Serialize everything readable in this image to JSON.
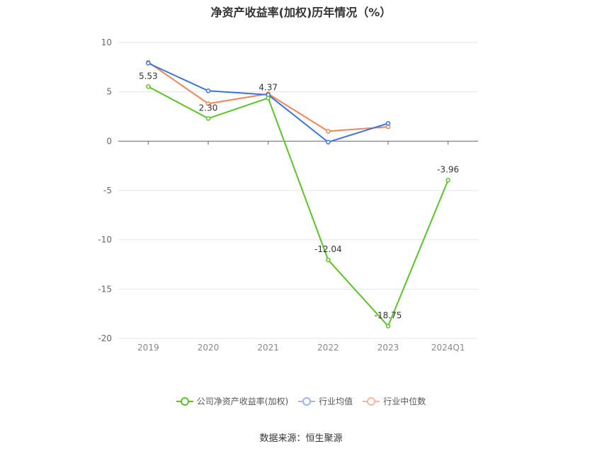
{
  "chart_data": {
    "type": "line",
    "title": "净资产收益率(加权)历年情况（%）",
    "categories": [
      "2019",
      "2020",
      "2021",
      "2022",
      "2023",
      "2024Q1"
    ],
    "ylim": [
      -20,
      10
    ],
    "yticks": [
      10,
      5,
      0,
      -5,
      -10,
      -15,
      -20
    ],
    "grid": true,
    "legend_position": "bottom",
    "series": [
      {
        "name": "公司净资产收益率(加权)",
        "color": "#5cc22a",
        "values": [
          5.53,
          2.3,
          4.37,
          -12.04,
          -18.75,
          -3.96
        ],
        "labels": [
          "5.53",
          "2.30",
          "4.37",
          "-12.04",
          "-18.75",
          "-3.96"
        ]
      },
      {
        "name": "行业均值",
        "color": "#3b74e0",
        "values": [
          7.9,
          5.1,
          4.7,
          -0.1,
          1.8,
          null
        ]
      },
      {
        "name": "行业中位数",
        "color": "#f0855a",
        "values": [
          8.0,
          3.8,
          4.8,
          1.0,
          1.45,
          null
        ]
      }
    ]
  },
  "source": "数据来源：恒生聚源"
}
